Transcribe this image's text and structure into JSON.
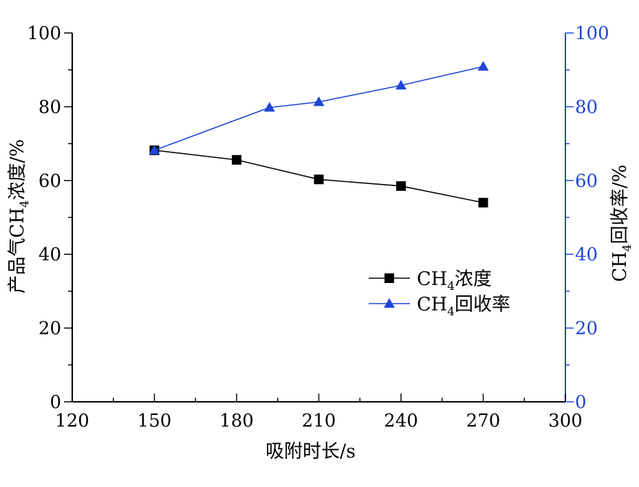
{
  "chart_data": {
    "type": "line",
    "xlabel": "吸附时长/s",
    "ylabel_left": {
      "main": "产品气CH",
      "sub": "4",
      "rest": "浓度/%"
    },
    "ylabel_right": {
      "main": "CH",
      "sub": "4",
      "rest": "回收率/%"
    },
    "xlim": [
      120,
      300
    ],
    "ylim_left": [
      0,
      100
    ],
    "ylim_right": [
      0,
      100
    ],
    "xticks": [
      120,
      150,
      180,
      210,
      240,
      270,
      300
    ],
    "yticks_left": [
      0,
      20,
      40,
      60,
      80,
      100
    ],
    "yticks_right": [
      0,
      20,
      40,
      60,
      80,
      100
    ],
    "grid": false,
    "legend_position": "center-right",
    "series": [
      {
        "name_main": "CH",
        "name_sub": "4",
        "name_rest": "浓度",
        "axis": "left",
        "marker": "square",
        "color": "#000000",
        "x": [
          150,
          180,
          210,
          240,
          270
        ],
        "y": [
          68.2,
          65.6,
          60.3,
          58.5,
          54.0
        ]
      },
      {
        "name_main": "CH",
        "name_sub": "4",
        "name_rest": "回收率",
        "axis": "right",
        "marker": "triangle",
        "color": "#1f45d6",
        "x": [
          150,
          192,
          210,
          240,
          270
        ],
        "y": [
          68.2,
          79.8,
          81.3,
          85.8,
          90.9
        ]
      }
    ]
  }
}
